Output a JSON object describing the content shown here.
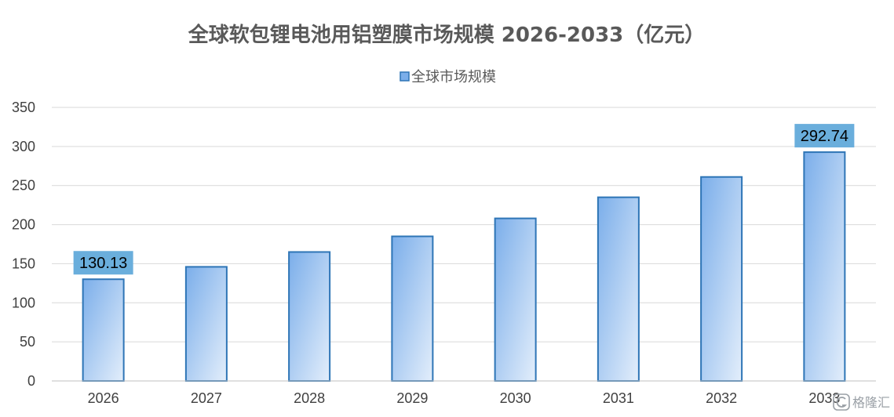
{
  "chart_data": {
    "type": "bar",
    "title": "全球软包锂电池用铝塑膜市场规模 2026-2033（亿元）",
    "categories": [
      "2026",
      "2027",
      "2028",
      "2029",
      "2030",
      "2031",
      "2032",
      "2033"
    ],
    "series": [
      {
        "name": "全球市场规模",
        "values": [
          130.13,
          146,
          165,
          185,
          208,
          235,
          261,
          292.74
        ]
      }
    ],
    "data_labels": [
      {
        "index": 0,
        "text": "130.13"
      },
      {
        "index": 7,
        "text": "292.74"
      }
    ],
    "ylim": [
      0,
      350
    ],
    "yticks": [
      0,
      50,
      100,
      150,
      200,
      250,
      300,
      350
    ],
    "grid": true,
    "legend_position": "top-center",
    "colors": {
      "bar_top": "#7BAEEA",
      "bar_bottom": "#E3EEFB",
      "bar_stroke": "#2E75B6",
      "label_bg": "#6AAEDC",
      "grid": "#D9D9D9",
      "axis": "#BFBFBF"
    }
  },
  "watermark": {
    "icon": "gelonghui-logo-icon",
    "text": "格隆汇"
  }
}
